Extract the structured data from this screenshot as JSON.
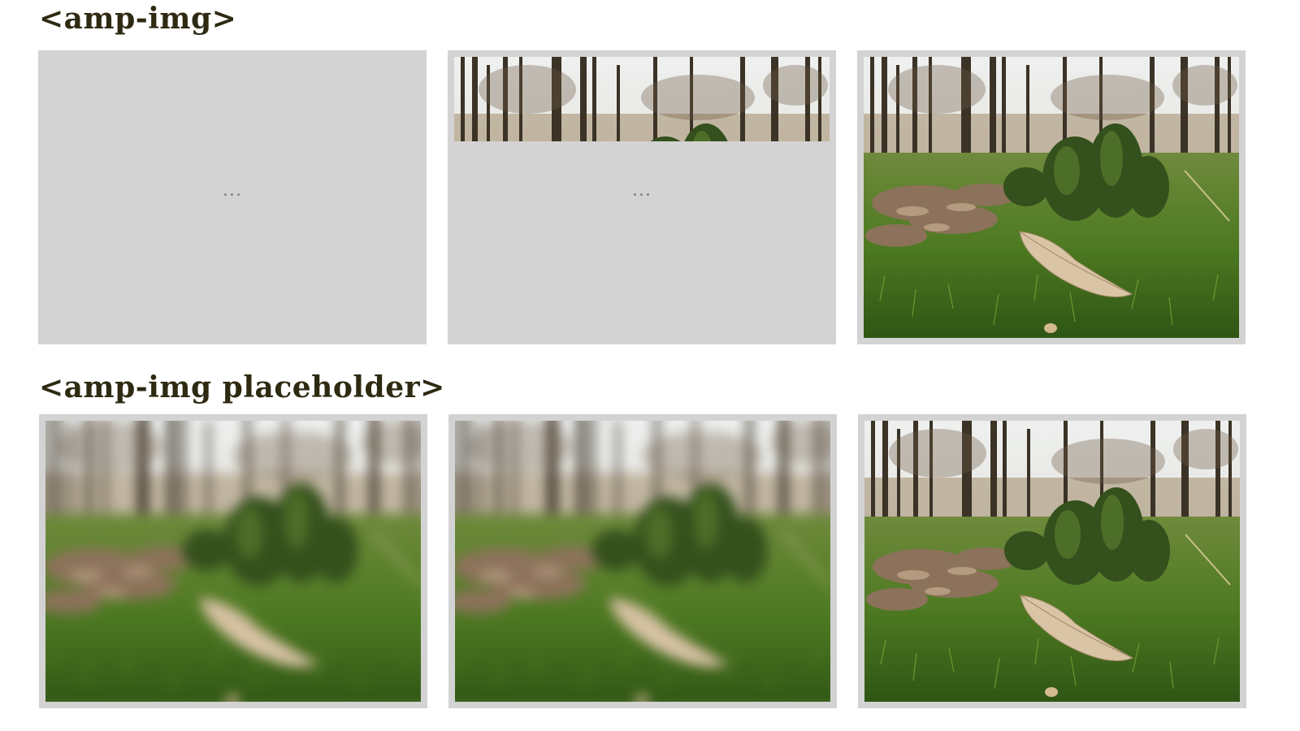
{
  "sections": [
    {
      "heading": "<amp-img>",
      "cells": [
        {
          "state": "empty-placeholder",
          "indicator": "..."
        },
        {
          "state": "partially-loaded",
          "indicator": "..."
        },
        {
          "state": "loaded"
        }
      ]
    },
    {
      "heading": "<amp-img placeholder>",
      "cells": [
        {
          "state": "blurred-placeholder"
        },
        {
          "state": "blurred-placeholder"
        },
        {
          "state": "loaded"
        }
      ]
    }
  ],
  "colors": {
    "heading": "#2e2a12",
    "frame_background": "#d3d3d3",
    "loading_indicator": "#7a7a7a"
  },
  "icons": {
    "loading": "ellipsis-icon",
    "image_subject": "forest-moss-photo"
  }
}
